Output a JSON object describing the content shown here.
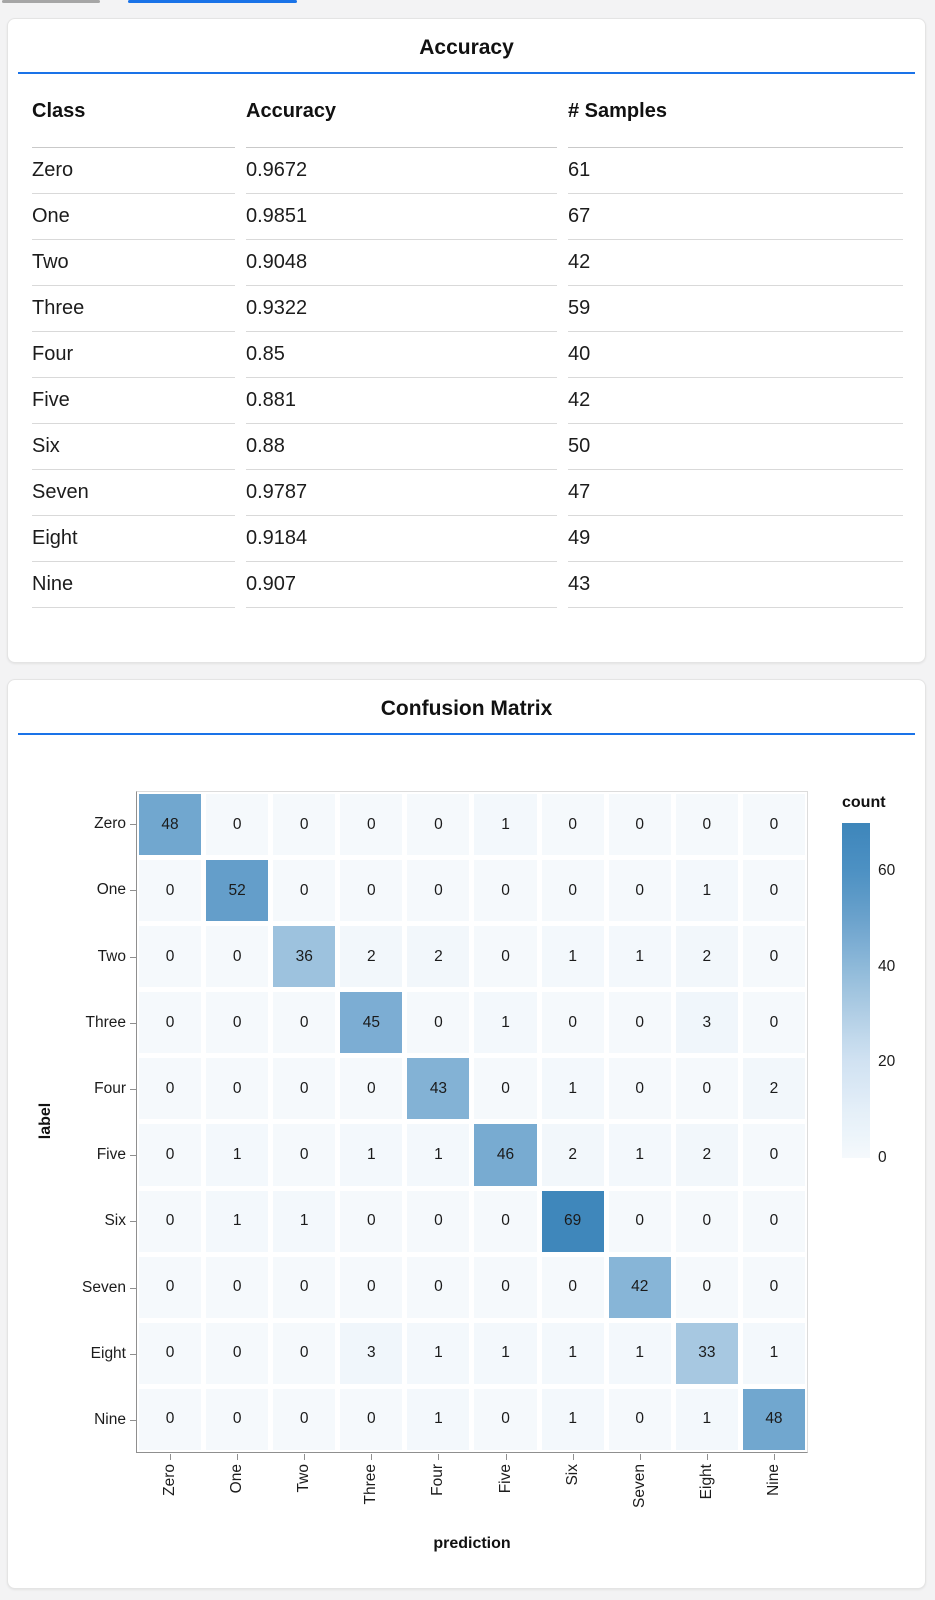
{
  "top_bars": {
    "gray_bar": "",
    "blue_bar": ""
  },
  "theme": {
    "accent_blue": "#1a73e8",
    "card_background": "#ffffff",
    "page_background": "#f3f3f4",
    "heatmap_min_color": "#f5f9fc",
    "heatmap_max_color": "#3e86ba"
  },
  "chart_data": [
    {
      "type": "table",
      "title": "Accuracy",
      "columns": [
        "Class",
        "Accuracy",
        "# Samples"
      ],
      "rows": [
        [
          "Zero",
          "0.9672",
          "61"
        ],
        [
          "One",
          "0.9851",
          "67"
        ],
        [
          "Two",
          "0.9048",
          "42"
        ],
        [
          "Three",
          "0.9322",
          "59"
        ],
        [
          "Four",
          "0.85",
          "40"
        ],
        [
          "Five",
          "0.881",
          "42"
        ],
        [
          "Six",
          "0.88",
          "50"
        ],
        [
          "Seven",
          "0.9787",
          "47"
        ],
        [
          "Eight",
          "0.9184",
          "49"
        ],
        [
          "Nine",
          "0.907",
          "43"
        ]
      ]
    },
    {
      "type": "heatmap",
      "title": "Confusion Matrix",
      "xlabel": "prediction",
      "ylabel": "label",
      "x_categories": [
        "Zero",
        "One",
        "Two",
        "Three",
        "Four",
        "Five",
        "Six",
        "Seven",
        "Eight",
        "Nine"
      ],
      "y_categories": [
        "Zero",
        "One",
        "Two",
        "Three",
        "Four",
        "Five",
        "Six",
        "Seven",
        "Eight",
        "Nine"
      ],
      "matrix": [
        [
          48,
          0,
          0,
          0,
          0,
          1,
          0,
          0,
          0,
          0
        ],
        [
          0,
          52,
          0,
          0,
          0,
          0,
          0,
          0,
          1,
          0
        ],
        [
          0,
          0,
          36,
          2,
          2,
          0,
          1,
          1,
          2,
          0
        ],
        [
          0,
          0,
          0,
          45,
          0,
          1,
          0,
          0,
          3,
          0
        ],
        [
          0,
          0,
          0,
          0,
          43,
          0,
          1,
          0,
          0,
          2
        ],
        [
          0,
          1,
          0,
          1,
          1,
          46,
          2,
          1,
          2,
          0
        ],
        [
          0,
          1,
          1,
          0,
          0,
          0,
          69,
          0,
          0,
          0
        ],
        [
          0,
          0,
          0,
          0,
          0,
          0,
          0,
          42,
          0,
          0
        ],
        [
          0,
          0,
          0,
          3,
          1,
          1,
          1,
          1,
          33,
          1
        ],
        [
          0,
          0,
          0,
          0,
          1,
          0,
          1,
          0,
          1,
          48
        ]
      ],
      "legend": {
        "title": "count",
        "ticks": [
          60,
          40,
          20,
          0
        ],
        "scale_max": 70
      }
    }
  ]
}
